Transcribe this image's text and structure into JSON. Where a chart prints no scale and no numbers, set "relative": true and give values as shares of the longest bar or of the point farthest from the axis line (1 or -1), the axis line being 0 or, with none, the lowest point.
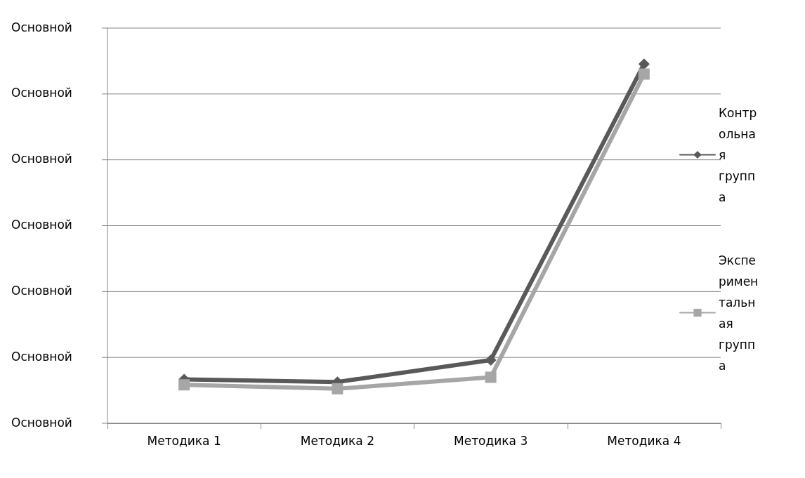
{
  "chart_data": {
    "type": "line",
    "relative": true,
    "categories": [
      "Методика 1",
      "Методика 2",
      "Методика 3",
      "Методика 4"
    ],
    "series": [
      {
        "name": "Контрольная группа",
        "color": "#595959",
        "marker": "diamond",
        "values": [
          0.122,
          0.115,
          0.176,
          1
        ]
      },
      {
        "name": "Экспериментальная группа",
        "color": "#a6a6a6",
        "marker": "square",
        "values": [
          0.107,
          0.096,
          0.128,
          0.972
        ]
      }
    ],
    "annotations": [
      "Основной",
      "Основной",
      "Основной",
      "Основной",
      "Основной",
      "Основной",
      "Основной"
    ],
    "grid": "y",
    "legend": "right"
  }
}
